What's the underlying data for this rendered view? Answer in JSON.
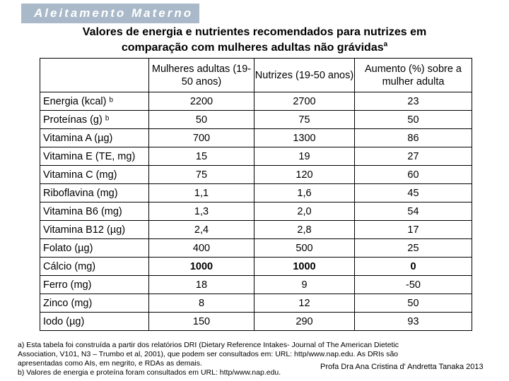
{
  "header_tag": "Aleitamento Materno",
  "title": {
    "line1": "Valores de energia e nutrientes recomendados para nutrizes em",
    "line2": "comparação com mulheres adultas não grávidas",
    "superscript": "a"
  },
  "table": {
    "columns": [
      "",
      "Mulheres adultas (19-50 anos)",
      "Nutrizes (19-50 anos)",
      "Aumento (%) sobre a mulher adulta"
    ],
    "rows": [
      {
        "label": "Energia (kcal) ᵇ",
        "adult": "2200",
        "lactating": "2700",
        "increase": "23",
        "bold": false
      },
      {
        "label": "Proteínas (g) ᵇ",
        "adult": "50",
        "lactating": "75",
        "increase": "50",
        "bold": false
      },
      {
        "label": "Vitamina A (µg)",
        "adult": "700",
        "lactating": "1300",
        "increase": "86",
        "bold": false
      },
      {
        "label": "Vitamina E (TE, mg)",
        "adult": "15",
        "lactating": "19",
        "increase": "27",
        "bold": false
      },
      {
        "label": "Vitamina C (mg)",
        "adult": "75",
        "lactating": "120",
        "increase": "60",
        "bold": false
      },
      {
        "label": "Riboflavina (mg)",
        "adult": "1,1",
        "lactating": "1,6",
        "increase": "45",
        "bold": false
      },
      {
        "label": "Vitamina B6 (mg)",
        "adult": "1,3",
        "lactating": "2,0",
        "increase": "54",
        "bold": false
      },
      {
        "label": "Vitamina B12 (µg)",
        "adult": "2,4",
        "lactating": "2,8",
        "increase": "17",
        "bold": false
      },
      {
        "label": "Folato (µg)",
        "adult": "400",
        "lactating": "500",
        "increase": "25",
        "bold": false
      },
      {
        "label": "Cálcio (mg)",
        "adult": "1000",
        "lactating": "1000",
        "increase": "0",
        "bold": true
      },
      {
        "label": "Ferro (mg)",
        "adult": "18",
        "lactating": "9",
        "increase": "-50",
        "bold": false
      },
      {
        "label": "Zinco (mg)",
        "adult": "8",
        "lactating": "12",
        "increase": "50",
        "bold": false
      },
      {
        "label": "Iodo (µg)",
        "adult": "150",
        "lactating": "290",
        "increase": "93",
        "bold": false
      }
    ]
  },
  "footnotes": [
    "a) Esta tabela foi construída a partir dos relatórios DRI (Dietary Reference Intakes- Journal of The American Dietetic",
    "Association, V101, N3 – Trumbo et al, 2001), que podem ser consultados em: URL: http/www.nap.edu. As DRIs são",
    "apresentadas como AIs, em negrito, e RDAs as demais.",
    "b) Valores de energia e proteína foram consultados em URL: http/www.nap.edu."
  ],
  "credit": "Profa Dra  Ana Cristina d' Andretta Tanaka 2013"
}
